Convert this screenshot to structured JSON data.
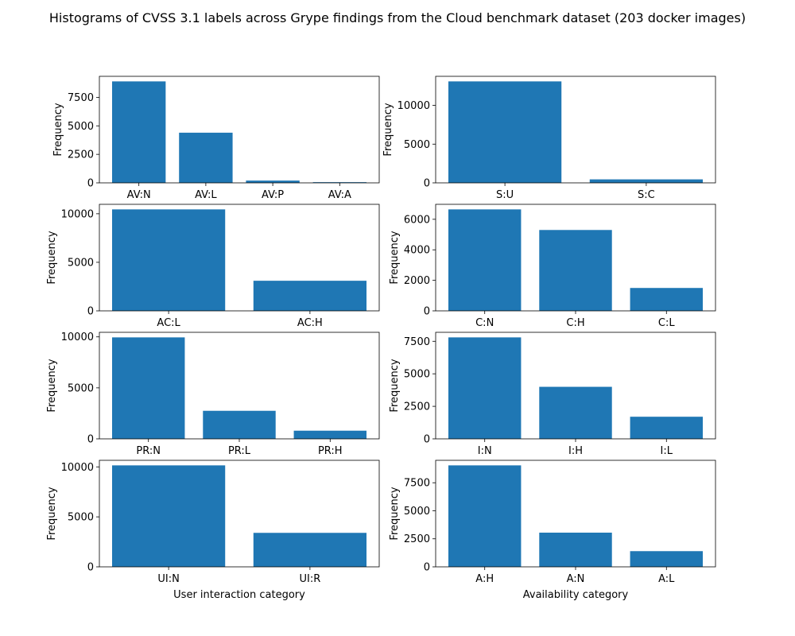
{
  "figure": {
    "title": "Histograms of CVSS 3.1 labels across Grype findings from the Cloud benchmark dataset (203 docker images)",
    "bar_color": "#1f77b4"
  },
  "chart_data": [
    {
      "type": "bar",
      "categories": [
        "AV:N",
        "AV:L",
        "AV:P",
        "AV:A"
      ],
      "values": [
        8900,
        4400,
        200,
        60
      ],
      "ylabel": "Frequency",
      "xlabel": "",
      "ylim": [
        0,
        9345
      ],
      "yticks": [
        0,
        2500,
        5000,
        7500
      ]
    },
    {
      "type": "bar",
      "categories": [
        "S:U",
        "S:C"
      ],
      "values": [
        13100,
        450
      ],
      "ylabel": "Frequency",
      "xlabel": "",
      "ylim": [
        0,
        13755
      ],
      "yticks": [
        0,
        5000,
        10000
      ]
    },
    {
      "type": "bar",
      "categories": [
        "AC:L",
        "AC:H"
      ],
      "values": [
        10450,
        3100
      ],
      "ylabel": "Frequency",
      "xlabel": "",
      "ylim": [
        0,
        10972
      ],
      "yticks": [
        0,
        5000,
        10000
      ]
    },
    {
      "type": "bar",
      "categories": [
        "C:N",
        "C:H",
        "C:L"
      ],
      "values": [
        6650,
        5300,
        1500
      ],
      "ylabel": "Frequency",
      "xlabel": "",
      "ylim": [
        0,
        6982
      ],
      "yticks": [
        0,
        2000,
        4000,
        6000
      ]
    },
    {
      "type": "bar",
      "categories": [
        "PR:N",
        "PR:L",
        "PR:H"
      ],
      "values": [
        9950,
        2750,
        800
      ],
      "ylabel": "Frequency",
      "xlabel": "",
      "ylim": [
        0,
        10447
      ],
      "yticks": [
        0,
        5000,
        10000
      ]
    },
    {
      "type": "bar",
      "categories": [
        "I:N",
        "I:H",
        "I:L"
      ],
      "values": [
        7800,
        4000,
        1700
      ],
      "ylabel": "Frequency",
      "xlabel": "",
      "ylim": [
        0,
        8190
      ],
      "yticks": [
        0,
        2500,
        5000,
        7500
      ]
    },
    {
      "type": "bar",
      "categories": [
        "UI:N",
        "UI:R"
      ],
      "values": [
        10150,
        3400
      ],
      "ylabel": "Frequency",
      "xlabel": "User interaction category",
      "ylim": [
        0,
        10657
      ],
      "yticks": [
        0,
        5000,
        10000
      ]
    },
    {
      "type": "bar",
      "categories": [
        "A:H",
        "A:N",
        "A:L"
      ],
      "values": [
        9050,
        3050,
        1400
      ],
      "ylabel": "Frequency",
      "xlabel": "Availability category",
      "ylim": [
        0,
        9502
      ],
      "yticks": [
        0,
        2500,
        5000,
        7500
      ]
    }
  ]
}
